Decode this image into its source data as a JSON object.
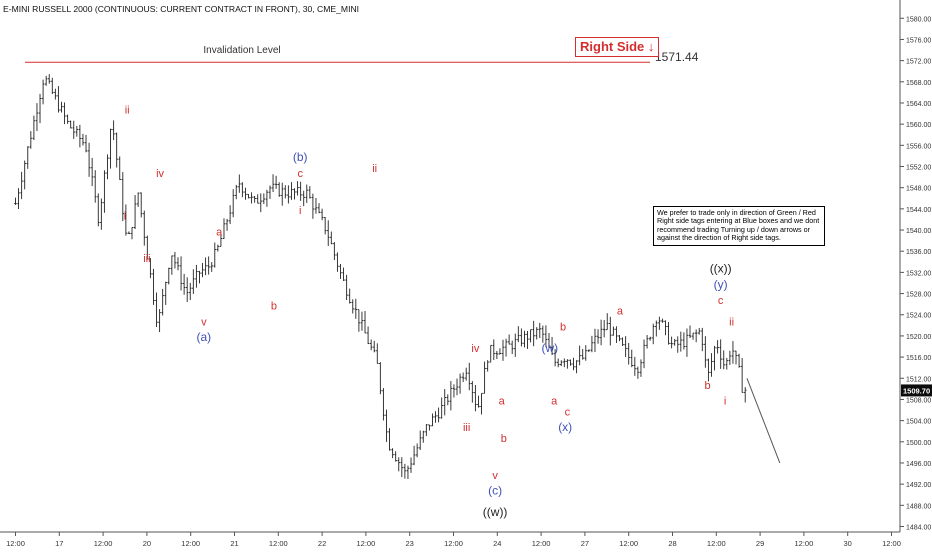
{
  "chart_title": "E-MINI RUSSELL 2000 (CONTINUOUS: CURRENT CONTRACT IN FRONT), 30, CME_MINI",
  "invalidation_label": "Invalidation Level",
  "invalidation_value": "1571.44",
  "right_side_label": "Right Side",
  "right_side_arrow": "↓",
  "note_text": "We prefer to trade only in direction of Green / Red Right side tags entering at Blue boxes and we dont recommend trading Turning up / down arrows or against the direction of Right side tags.",
  "last_price_label": "1509.70",
  "colors": {
    "red": "#d32f2f",
    "blue": "#3f51b5",
    "dark": "#222222",
    "price_tag_bg": "#0d0d0d"
  },
  "chart_data": {
    "type": "line",
    "title": "E-MINI RUSSELL 2000 (CONTINUOUS: CURRENT CONTRACT IN FRONT), 30, CME_MINI",
    "xlabel": "",
    "ylabel": "",
    "ylim": [
      1482,
      1584
    ],
    "grid": false,
    "y_ticks": [
      "1484.00",
      "1488.00",
      "1492.00",
      "1496.00",
      "1500.00",
      "1504.00",
      "1508.00",
      "1512.00",
      "1516.00",
      "1520.00",
      "1524.00",
      "1528.00",
      "1532.00",
      "1536.00",
      "1540.00",
      "1544.00",
      "1548.00",
      "1552.00",
      "1556.00",
      "1560.00",
      "1564.00",
      "1568.00",
      "1572.00",
      "1576.00",
      "1580.00"
    ],
    "x_tick_labels": [
      "12:00",
      "17",
      "12:00",
      "20",
      "12:00",
      "21",
      "12:00",
      "22",
      "12:00",
      "23",
      "12:00",
      "24",
      "12:00",
      "27",
      "12:00",
      "28",
      "12:00",
      "29",
      "12:00",
      "30",
      "12:00"
    ],
    "x_tick_index": [
      0,
      2,
      4,
      6,
      8,
      10,
      12,
      14,
      16,
      18,
      20,
      22,
      24,
      26,
      28,
      30,
      32,
      34,
      36,
      38,
      40
    ],
    "series": [
      {
        "values_index": [
          0,
          1.3,
          2.4,
          3.2,
          3.8,
          4.4,
          5.1,
          5.6,
          6.5,
          7.1,
          7.8,
          8.4,
          8.8,
          9.2,
          10.2,
          10.9,
          11.6,
          12.4,
          13.3,
          13.8,
          14.2,
          14.9,
          15.8,
          16.5,
          17.0,
          17.8,
          18.8,
          19.4,
          20.0,
          20.6,
          21.1,
          21.6,
          22.5,
          23.4,
          24.0,
          24.6,
          25.1,
          25.5,
          26.0,
          26.4,
          27.0,
          28.0,
          28.4,
          29.3,
          30.0,
          30.6,
          31.3,
          31.6,
          32.0,
          32.4,
          32.7,
          33.0,
          33.2,
          33.4
        ],
        "values": [
          1545,
          1569,
          1560,
          1556,
          1542,
          1561,
          1537,
          1547,
          1522,
          1536,
          1528,
          1532,
          1533,
          1536,
          1549,
          1545,
          1548,
          1547,
          1547,
          1543,
          1540,
          1531,
          1522,
          1515,
          1500,
          1494,
          1503,
          1506,
          1510,
          1514,
          1506,
          1517,
          1518,
          1520,
          1521,
          1515,
          1516,
          1515,
          1516,
          1519,
          1522,
          1516,
          1514,
          1524,
          1518,
          1519,
          1521,
          1512,
          1519,
          1514,
          1518,
          1514,
          1510,
          1509.7
        ]
      }
    ],
    "projection": {
      "from_index": 33.4,
      "from_value": 1512,
      "to_index": 34.9,
      "to_value": 1496
    },
    "invalidation_level": 1571.44,
    "last_price": 1509.7,
    "wave_labels": [
      {
        "text": "i",
        "x": 5.0,
        "y": 1542,
        "color": "red"
      },
      {
        "text": "ii",
        "x": 5.1,
        "y": 1562,
        "color": "red"
      },
      {
        "text": "iii",
        "x": 6.0,
        "y": 1534,
        "color": "red"
      },
      {
        "text": "iv",
        "x": 6.6,
        "y": 1550,
        "color": "red"
      },
      {
        "text": "v",
        "x": 8.6,
        "y": 1522,
        "color": "red"
      },
      {
        "text": "(a)",
        "x": 8.6,
        "y": 1519,
        "color": "blue"
      },
      {
        "text": "a",
        "x": 9.3,
        "y": 1539,
        "color": "red"
      },
      {
        "text": "b",
        "x": 11.8,
        "y": 1525,
        "color": "red"
      },
      {
        "text": "c",
        "x": 13.0,
        "y": 1550,
        "color": "red"
      },
      {
        "text": "(b)",
        "x": 13.0,
        "y": 1553,
        "color": "blue"
      },
      {
        "text": "i",
        "x": 13.0,
        "y": 1543,
        "color": "red"
      },
      {
        "text": "ii",
        "x": 16.4,
        "y": 1551,
        "color": "red"
      },
      {
        "text": "iii",
        "x": 20.6,
        "y": 1502,
        "color": "red"
      },
      {
        "text": "iv",
        "x": 21.0,
        "y": 1517,
        "color": "red"
      },
      {
        "text": "a",
        "x": 22.2,
        "y": 1507,
        "color": "red"
      },
      {
        "text": "b",
        "x": 22.3,
        "y": 1500,
        "color": "red"
      },
      {
        "text": "v",
        "x": 21.9,
        "y": 1493,
        "color": "red"
      },
      {
        "text": "(c)",
        "x": 21.9,
        "y": 1490,
        "color": "blue"
      },
      {
        "text": "((w))",
        "x": 21.9,
        "y": 1486,
        "color": "dark"
      },
      {
        "text": "(w)",
        "x": 24.4,
        "y": 1517,
        "color": "blue"
      },
      {
        "text": "a",
        "x": 24.6,
        "y": 1507,
        "color": "red"
      },
      {
        "text": "b",
        "x": 25.0,
        "y": 1521,
        "color": "red"
      },
      {
        "text": "c",
        "x": 25.2,
        "y": 1505,
        "color": "red"
      },
      {
        "text": "(x)",
        "x": 25.1,
        "y": 1502,
        "color": "blue"
      },
      {
        "text": "a",
        "x": 27.6,
        "y": 1524,
        "color": "red"
      },
      {
        "text": "b",
        "x": 31.6,
        "y": 1510,
        "color": "red"
      },
      {
        "text": "c",
        "x": 32.2,
        "y": 1526,
        "color": "red"
      },
      {
        "text": "(y)",
        "x": 32.2,
        "y": 1529,
        "color": "blue"
      },
      {
        "text": "((x))",
        "x": 32.2,
        "y": 1532,
        "color": "dark"
      },
      {
        "text": "ii",
        "x": 32.7,
        "y": 1522,
        "color": "red"
      },
      {
        "text": "i",
        "x": 32.4,
        "y": 1507,
        "color": "red"
      }
    ]
  }
}
